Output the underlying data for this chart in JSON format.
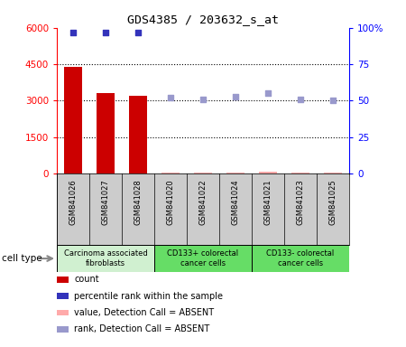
{
  "title": "GDS4385 / 203632_s_at",
  "samples": [
    "GSM841026",
    "GSM841027",
    "GSM841028",
    "GSM841020",
    "GSM841022",
    "GSM841024",
    "GSM841021",
    "GSM841023",
    "GSM841025"
  ],
  "count_values": [
    4400,
    3300,
    3200,
    0,
    0,
    0,
    0,
    0,
    0
  ],
  "count_absent": [
    false,
    false,
    false,
    true,
    true,
    true,
    true,
    true,
    true
  ],
  "count_absent_values": [
    0,
    0,
    0,
    55,
    40,
    40,
    80,
    40,
    30
  ],
  "percentile_rank": [
    97,
    97,
    97,
    null,
    null,
    null,
    null,
    null,
    null
  ],
  "percentile_absent": [
    null,
    null,
    null,
    52,
    51,
    53,
    55,
    51,
    50
  ],
  "ylim_left": [
    0,
    6000
  ],
  "ylim_right": [
    0,
    100
  ],
  "yticks_left": [
    0,
    1500,
    3000,
    4500,
    6000
  ],
  "yticks_right": [
    0,
    25,
    50,
    75,
    100
  ],
  "cell_groups": [
    {
      "label": "Carcinoma associated\nfibroblasts",
      "start": 0,
      "end": 3,
      "color": "#d0f0d0"
    },
    {
      "label": "CD133+ colorectal\ncancer cells",
      "start": 3,
      "end": 6,
      "color": "#66dd66"
    },
    {
      "label": "CD133- colorectal\ncancer cells",
      "start": 6,
      "end": 9,
      "color": "#66dd66"
    }
  ],
  "bar_color": "#cc0000",
  "absent_bar_color": "#ffaaaa",
  "rank_color": "#3333bb",
  "absent_rank_color": "#9999cc",
  "tick_area_bg": "#cccccc",
  "legend_items": [
    {
      "color": "#cc0000",
      "label": "count"
    },
    {
      "color": "#3333bb",
      "label": "percentile rank within the sample"
    },
    {
      "color": "#ffaaaa",
      "label": "value, Detection Call = ABSENT"
    },
    {
      "color": "#9999cc",
      "label": "rank, Detection Call = ABSENT"
    }
  ]
}
